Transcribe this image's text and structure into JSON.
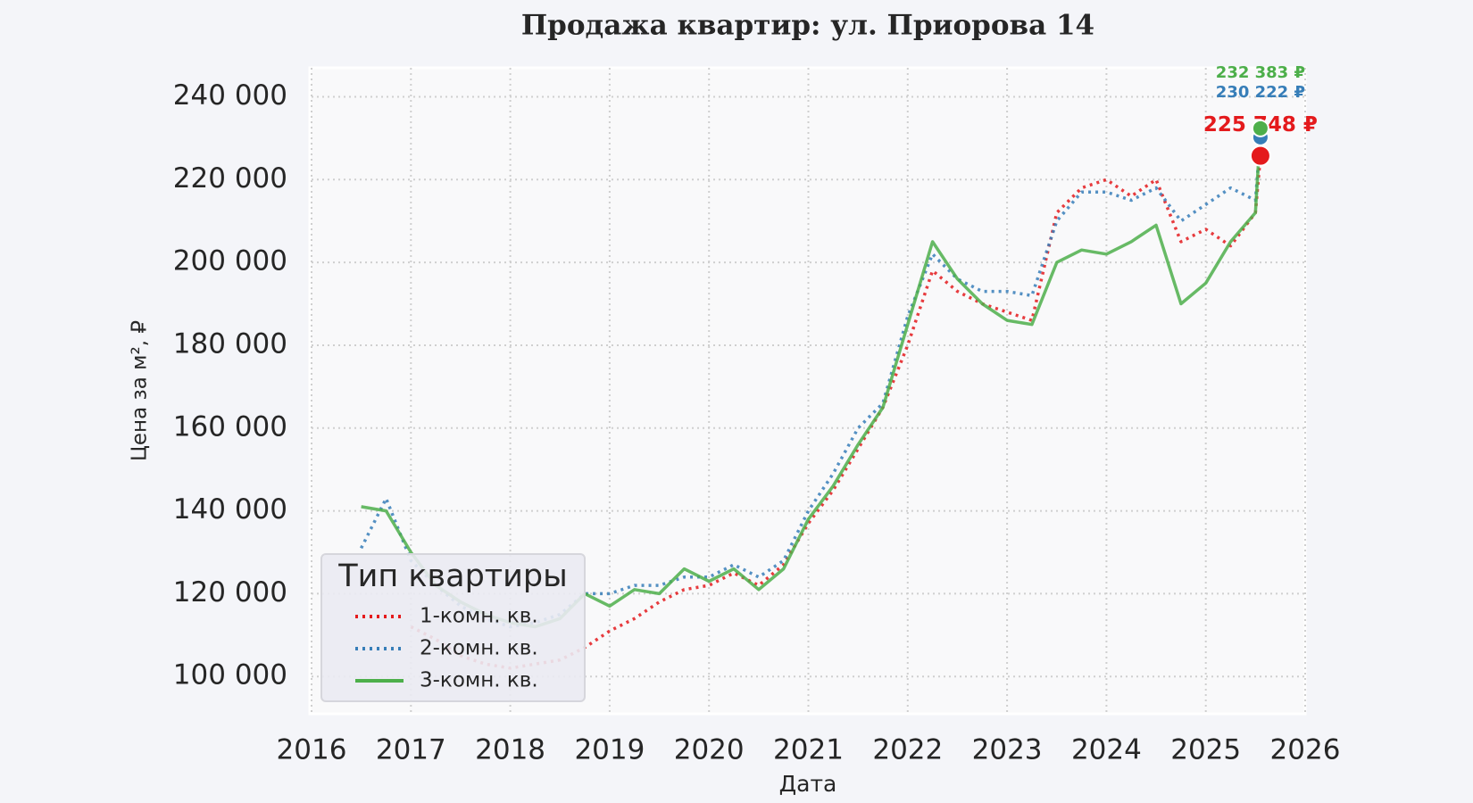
{
  "chart_data": {
    "type": "line",
    "title": "Продажа квартир: ул. Приорова 14",
    "x_label": "Дата",
    "y_label": "Цена за м², ₽",
    "x": [
      2016.5,
      2016.75,
      2017.0,
      2017.25,
      2017.5,
      2017.75,
      2018.0,
      2018.25,
      2018.5,
      2018.75,
      2019.0,
      2019.25,
      2019.5,
      2019.75,
      2020.0,
      2020.25,
      2020.5,
      2020.75,
      2021.0,
      2021.25,
      2021.5,
      2021.75,
      2022.0,
      2022.25,
      2022.5,
      2022.75,
      2023.0,
      2023.25,
      2023.5,
      2023.75,
      2024.0,
      2024.25,
      2024.5,
      2024.75,
      2025.0,
      2025.25,
      2025.5,
      2025.55
    ],
    "series": [
      {
        "name": "1-комн. кв.",
        "color": "#e41a1c",
        "dash": "dotted",
        "values": [
          null,
          null,
          112000,
          109000,
          105000,
          103000,
          102000,
          103000,
          104000,
          107000,
          111000,
          114000,
          118000,
          121000,
          122000,
          125000,
          122000,
          127000,
          137000,
          145000,
          155000,
          165000,
          180000,
          198000,
          193000,
          190000,
          188000,
          186000,
          212000,
          218000,
          220000,
          216000,
          220000,
          205000,
          208000,
          204000,
          212000,
          225748
        ],
        "value_labels": [
          null,
          null,
          null,
          null,
          null,
          null,
          null,
          null,
          null,
          null,
          null,
          null,
          null,
          null,
          null,
          null,
          null,
          null,
          null,
          null,
          null,
          null,
          null,
          null,
          null,
          null,
          null,
          null,
          null,
          null,
          null,
          null,
          null,
          null,
          null,
          null,
          null,
          "225 748 ₽"
        ]
      },
      {
        "name": "2-комн. кв.",
        "color": "#377eb8",
        "dash": "dotted",
        "values": [
          131000,
          143000,
          128000,
          122000,
          117000,
          114000,
          112000,
          113000,
          115000,
          120000,
          120000,
          122000,
          122000,
          124000,
          124000,
          127000,
          124000,
          128000,
          140000,
          149000,
          160000,
          166000,
          187000,
          202000,
          196000,
          193000,
          193000,
          192000,
          210000,
          217000,
          217000,
          215000,
          218000,
          210000,
          214000,
          218000,
          215000,
          230222
        ],
        "value_labels": [
          null,
          null,
          null,
          null,
          null,
          null,
          null,
          null,
          null,
          null,
          null,
          null,
          null,
          null,
          null,
          null,
          null,
          null,
          null,
          null,
          null,
          null,
          null,
          null,
          null,
          null,
          null,
          null,
          null,
          null,
          null,
          null,
          null,
          null,
          null,
          null,
          null,
          "230 222 ₽"
        ]
      },
      {
        "name": "3-комн. кв.",
        "color": "#4daf4a",
        "dash": "solid",
        "values": [
          141000,
          140000,
          130000,
          122000,
          118000,
          115000,
          113000,
          112000,
          114000,
          120000,
          117000,
          121000,
          120000,
          126000,
          123000,
          126000,
          121000,
          126000,
          138000,
          146000,
          156000,
          165000,
          185000,
          205000,
          196000,
          190000,
          186000,
          185000,
          200000,
          203000,
          202000,
          205000,
          209000,
          190000,
          195000,
          205000,
          212000,
          232383
        ],
        "value_labels": [
          null,
          null,
          null,
          null,
          null,
          null,
          null,
          null,
          null,
          null,
          null,
          null,
          null,
          null,
          null,
          null,
          null,
          null,
          null,
          null,
          null,
          null,
          null,
          null,
          null,
          null,
          null,
          null,
          null,
          null,
          null,
          null,
          null,
          null,
          null,
          null,
          null,
          "232 383 ₽"
        ]
      }
    ],
    "xlim": [
      2016,
      2026
    ],
    "xticks": [
      2016,
      2017,
      2018,
      2019,
      2020,
      2021,
      2022,
      2023,
      2024,
      2025,
      2026
    ],
    "ylim": [
      91000,
      247000
    ],
    "yticks": [
      {
        "value": 100000,
        "label": "100 000"
      },
      {
        "value": 120000,
        "label": "120 000"
      },
      {
        "value": 140000,
        "label": "140 000"
      },
      {
        "value": 160000,
        "label": "160 000"
      },
      {
        "value": 180000,
        "label": "180 000"
      },
      {
        "value": 200000,
        "label": "200 000"
      },
      {
        "value": 220000,
        "label": "220 000"
      },
      {
        "value": 240000,
        "label": "240 000"
      }
    ],
    "grid": true,
    "legend_title": "Тип квартиры",
    "legend_position": "lower left"
  }
}
